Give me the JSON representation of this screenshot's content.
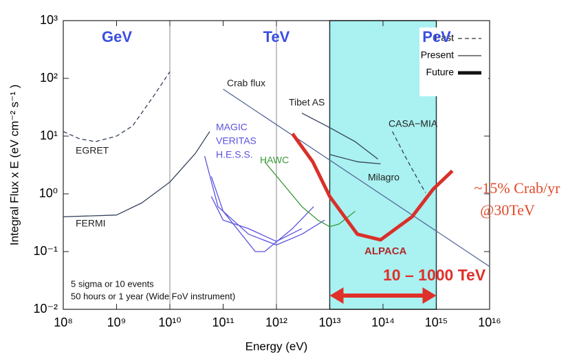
{
  "chart_data": {
    "type": "line",
    "xlabel": "Energy (eV)",
    "ylabel": "Integral Flux x E (eV cm⁻²  s⁻¹ )",
    "xscale": "log",
    "yscale": "log",
    "xlim": [
      100000000.0,
      1e+16
    ],
    "ylim": [
      0.01,
      1000.0
    ],
    "xticks": [
      {
        "value": 100000000.0,
        "label": "10⁸"
      },
      {
        "value": 1000000000.0,
        "label": "10⁹"
      },
      {
        "value": 10000000000.0,
        "label": "10¹⁰"
      },
      {
        "value": 100000000000.0,
        "label": "10¹¹"
      },
      {
        "value": 1000000000000.0,
        "label": "10¹²"
      },
      {
        "value": 10000000000000.0,
        "label": "10¹³"
      },
      {
        "value": 100000000000000.0,
        "label": "10¹⁴"
      },
      {
        "value": 1000000000000000.0,
        "label": "10¹⁵"
      },
      {
        "value": 1e+16,
        "label": "10¹⁶"
      }
    ],
    "yticks": [
      {
        "value": 0.01,
        "label": "10⁻²"
      },
      {
        "value": 0.1,
        "label": "10⁻¹"
      },
      {
        "value": 1,
        "label": "10⁰"
      },
      {
        "value": 10,
        "label": "10¹"
      },
      {
        "value": 100,
        "label": "10²"
      },
      {
        "value": 1000,
        "label": "10³"
      }
    ],
    "dividers": [
      10000000000.0,
      1000000000000.0
    ],
    "highlight": {
      "xlim": [
        10000000000000.0,
        1000000000000000.0
      ],
      "color": "#aaf1f1"
    },
    "legend": [
      {
        "label": "Past",
        "style": "dashed"
      },
      {
        "label": "Present",
        "style": "solid"
      },
      {
        "label": "Future",
        "style": "thick"
      }
    ],
    "series": [
      {
        "name": "EGRET",
        "color": "#33405a",
        "style": "dashed",
        "x": [
          100000000.0,
          200000000.0,
          400000000.0,
          1000000000.0,
          2000000000.0,
          5000000000.0,
          10000000000.0
        ],
        "values": [
          12,
          9,
          8,
          10,
          15,
          50,
          130
        ]
      },
      {
        "name": "FERMI",
        "color": "#33405a",
        "style": "solid",
        "x": [
          100000000.0,
          1000000000.0,
          3000000000.0,
          10000000000.0,
          30000000000.0,
          56000000000.0
        ],
        "values": [
          0.4,
          0.43,
          0.7,
          1.6,
          5,
          12
        ]
      },
      {
        "name": "MAGIC",
        "color": "#5a52e0",
        "style": "solid",
        "x": [
          45000000000.0,
          80000000000.0,
          300000000000.0,
          1000000000000.0,
          3000000000000.0,
          8000000000000.0
        ],
        "values": [
          4.5,
          0.6,
          0.2,
          0.13,
          0.2,
          0.35
        ]
      },
      {
        "name": "VERITAS",
        "color": "#5a52e0",
        "style": "solid",
        "x": [
          60000000000.0,
          100000000000.0,
          400000000000.0,
          600000000000.0,
          2000000000000.0,
          5000000000000.0
        ],
        "values": [
          2,
          0.5,
          0.1,
          0.1,
          0.25,
          0.6
        ]
      },
      {
        "name": "H.E.S.S.",
        "color": "#5a52e0",
        "style": "solid",
        "x": [
          60000000000.0,
          100000000000.0,
          300000000000.0,
          1000000000000.0,
          3000000000000.0
        ],
        "values": [
          0.9,
          0.35,
          0.25,
          0.15,
          0.25
        ]
      },
      {
        "name": "HAWC",
        "color": "#3a9a3a",
        "style": "solid",
        "x": [
          600000000000.0,
          1500000000000.0,
          3000000000000.0,
          6000000000000.0,
          10000000000000.0,
          15000000000000.0,
          30000000000000.0
        ],
        "values": [
          3.6,
          1.3,
          0.6,
          0.35,
          0.27,
          0.3,
          0.5
        ]
      },
      {
        "name": "Crab flux",
        "color": "#5a6a9a",
        "style": "solid",
        "x": [
          100000000000.0,
          1e+16
        ],
        "values": [
          65,
          0.055
        ]
      },
      {
        "name": "Tibet AS",
        "color": "#33405a",
        "style": "solid",
        "x": [
          3000000000000.0,
          10000000000000.0,
          30000000000000.0,
          80000000000000.0
        ],
        "values": [
          25,
          14,
          8,
          4
        ]
      },
      {
        "name": "Milagro",
        "color": "#33405a",
        "style": "solid",
        "x": [
          10000000000000.0,
          33000000000000.0,
          90000000000000.0
        ],
        "values": [
          4.8,
          3.6,
          3.3
        ]
      },
      {
        "name": "CASA−MIA",
        "color": "#33405a",
        "style": "dashed",
        "x": [
          150000000000000.0,
          270000000000000.0,
          480000000000000.0,
          630000000000000.0
        ],
        "values": [
          12,
          4.2,
          1.6,
          1.05
        ]
      },
      {
        "name": "ALPACA",
        "color": "#d9302a",
        "style": "thick",
        "x": [
          2000000000000.0,
          4800000000000.0,
          10000000000000.0,
          33000000000000.0,
          90000000000000.0,
          350000000000000.0,
          870000000000000.0,
          2000000000000000.0
        ],
        "values": [
          11,
          3.6,
          0.9,
          0.2,
          0.16,
          0.4,
          1.2,
          2.5
        ]
      }
    ],
    "annotations": [
      {
        "text": "GeV",
        "color": "#3a4ee0"
      },
      {
        "text": "TeV",
        "color": "#3a4ee0"
      },
      {
        "text": "PeV",
        "color": "#3a4ee0"
      },
      {
        "text": "5 sigma or 10 events",
        "color": "#111111"
      },
      {
        "text": "50 hours or 1 year (Wide FoV instrument)",
        "color": "#111111"
      },
      {
        "text": "~15% Crab/yr",
        "color": "#e04a2a"
      },
      {
        "text": "@30TeV",
        "color": "#e04a2a"
      },
      {
        "text": "10 – 1000 TeV",
        "color": "#e0302a"
      }
    ]
  }
}
